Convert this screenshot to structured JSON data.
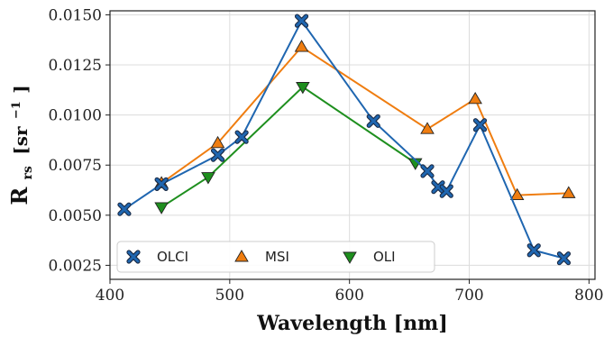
{
  "chart_data": {
    "type": "line",
    "xlabel_main": "Wavelength",
    "xlabel_unit": "[nm]",
    "ylabel_main": "R",
    "ylabel_sub": "rs",
    "ylabel_unit_open": "[sr",
    "ylabel_unit_exp": "−1",
    "ylabel_unit_close": "]",
    "xlim": [
      400,
      805
    ],
    "ylim": [
      0.0018,
      0.0152
    ],
    "xticks": [
      400,
      500,
      600,
      700,
      800
    ],
    "yticks": [
      0.0025,
      0.005,
      0.0075,
      0.01,
      0.0125,
      0.015
    ],
    "ytick_labels": [
      "0.0025",
      "0.0050",
      "0.0075",
      "0.0100",
      "0.0125",
      "0.0150"
    ],
    "grid": true,
    "legend_placement": "bottom-left",
    "series": [
      {
        "name": "OLCI",
        "color": "#1f66b0",
        "marker": "x",
        "x": [
          412,
          443,
          490,
          510,
          560,
          620,
          665,
          674,
          681,
          709,
          754,
          779
        ],
        "y": [
          0.0053,
          0.00655,
          0.008,
          0.0089,
          0.0147,
          0.0097,
          0.0072,
          0.0064,
          0.0062,
          0.0095,
          0.00325,
          0.00285
        ]
      },
      {
        "name": "MSI",
        "color": "#ef7d10",
        "marker": "triangle-up",
        "x": [
          443,
          490,
          560,
          665,
          705,
          740,
          783
        ],
        "y": [
          0.0066,
          0.0086,
          0.0134,
          0.0093,
          0.0108,
          0.006,
          0.0061
        ]
      },
      {
        "name": "OLI",
        "color": "#1e8f1e",
        "marker": "triangle-down",
        "x": [
          443,
          482,
          561,
          655
        ],
        "y": [
          0.0054,
          0.0069,
          0.0114,
          0.0076
        ]
      }
    ]
  }
}
